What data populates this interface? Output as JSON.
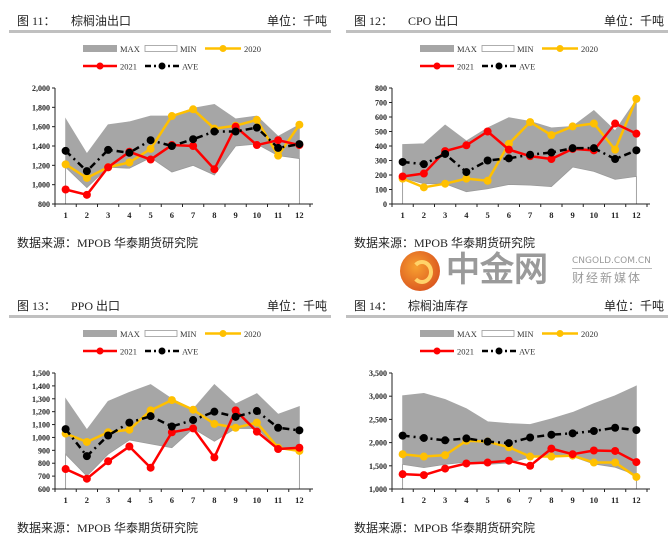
{
  "common": {
    "unit": "单位：千吨",
    "source": "数据来源：MPOB  华泰期货研究院",
    "legend": {
      "max": "MAX",
      "min": "MIN",
      "y2020": "2020",
      "y2021": "2021",
      "ave": "AVE"
    },
    "colors": {
      "band": "#a6a6a6",
      "min_edge": "#9a9a9a",
      "y2020": "#ffc000",
      "y2021": "#ff0000",
      "ave": "#000000"
    }
  },
  "watermark": {
    "cn": "中金网",
    "en": "CNGOLD.COM.CN",
    "sub": "财经新媒体"
  },
  "chart_data": [
    {
      "type": "line",
      "fig": "图 11：",
      "title": "棕榈油出口",
      "categories": [
        "1",
        "2",
        "3",
        "4",
        "5",
        "6",
        "7",
        "8",
        "9",
        "10",
        "11",
        "12"
      ],
      "ylim": [
        800,
        2000
      ],
      "yticks": [
        800,
        1000,
        1200,
        1400,
        1600,
        1800,
        2000
      ],
      "ytick_labels": [
        "800",
        "1,000",
        "1,200",
        "1,400",
        "1,600",
        "1,800",
        "2,000"
      ],
      "series": [
        {
          "name": "MAX",
          "values": [
            1680,
            1320,
            1620,
            1650,
            1710,
            1710,
            1790,
            1830,
            1680,
            1710,
            1500,
            1620
          ]
        },
        {
          "name": "MIN",
          "values": [
            1180,
            970,
            1180,
            1170,
            1280,
            1130,
            1200,
            1100,
            1400,
            1420,
            1300,
            1270
          ]
        },
        {
          "name": "2020",
          "values": [
            1210,
            1070,
            1180,
            1230,
            1370,
            1710,
            1780,
            1580,
            1610,
            1670,
            1300,
            1620
          ]
        },
        {
          "name": "2021",
          "values": [
            950,
            895,
            1180,
            1340,
            1260,
            1410,
            1400,
            1160,
            1600,
            1410,
            1460,
            1410
          ]
        },
        {
          "name": "AVE",
          "values": [
            1350,
            1140,
            1360,
            1330,
            1460,
            1400,
            1470,
            1550,
            1550,
            1590,
            1380,
            1420
          ]
        }
      ]
    },
    {
      "type": "line",
      "fig": "图 12：",
      "title": "CPO 出口",
      "categories": [
        "1",
        "2",
        "3",
        "4",
        "5",
        "6",
        "7",
        "8",
        "9",
        "10",
        "11",
        "12"
      ],
      "ylim": [
        0,
        800
      ],
      "yticks": [
        0,
        100,
        200,
        300,
        400,
        500,
        600,
        700,
        800
      ],
      "ytick_labels": [
        "0",
        "100",
        "200",
        "300",
        "400",
        "500",
        "600",
        "700",
        "800"
      ],
      "series": [
        {
          "name": "MAX",
          "values": [
            410,
            415,
            545,
            435,
            525,
            595,
            570,
            525,
            535,
            645,
            505,
            720
          ]
        },
        {
          "name": "MIN",
          "values": [
            180,
            140,
            140,
            85,
            105,
            135,
            130,
            120,
            255,
            225,
            170,
            190
          ]
        },
        {
          "name": "2020",
          "values": [
            175,
            115,
            140,
            175,
            160,
            415,
            565,
            475,
            535,
            555,
            375,
            725
          ]
        },
        {
          "name": "2021",
          "values": [
            190,
            210,
            365,
            405,
            500,
            375,
            330,
            310,
            380,
            370,
            555,
            485
          ]
        },
        {
          "name": "AVE",
          "values": [
            290,
            275,
            345,
            220,
            300,
            315,
            340,
            355,
            385,
            385,
            310,
            370
          ]
        }
      ]
    },
    {
      "type": "line",
      "fig": "图 13：",
      "title": "PPO 出口",
      "categories": [
        "1",
        "2",
        "3",
        "4",
        "5",
        "6",
        "7",
        "8",
        "9",
        "10",
        "11",
        "12"
      ],
      "ylim": [
        600,
        1500
      ],
      "yticks": [
        600,
        700,
        800,
        900,
        1000,
        1100,
        1200,
        1300,
        1400,
        1500
      ],
      "ytick_labels": [
        "600",
        "700",
        "800",
        "900",
        "1,000",
        "1,100",
        "1,200",
        "1,300",
        "1,400",
        "1,500"
      ],
      "series": [
        {
          "name": "MAX",
          "values": [
            1300,
            1060,
            1280,
            1350,
            1410,
            1300,
            1220,
            1410,
            1260,
            1340,
            1180,
            1240
          ]
        },
        {
          "name": "MIN",
          "values": [
            870,
            700,
            870,
            980,
            950,
            920,
            1070,
            970,
            1070,
            1070,
            920,
            920
          ]
        },
        {
          "name": "2020",
          "values": [
            1030,
            965,
            1040,
            1060,
            1210,
            1290,
            1215,
            1105,
            1075,
            1115,
            920,
            895
          ]
        },
        {
          "name": "2021",
          "values": [
            755,
            680,
            815,
            930,
            765,
            1040,
            1070,
            845,
            1210,
            1045,
            910,
            920
          ]
        },
        {
          "name": "AVE",
          "values": [
            1065,
            855,
            1015,
            1115,
            1165,
            1085,
            1135,
            1200,
            1160,
            1205,
            1075,
            1055
          ]
        }
      ]
    },
    {
      "type": "line",
      "fig": "图 14：",
      "title": "棕榈油库存",
      "categories": [
        "1",
        "2",
        "3",
        "4",
        "5",
        "6",
        "7",
        "8",
        "9",
        "10",
        "11",
        "12"
      ],
      "ylim": [
        1000,
        3500
      ],
      "yticks": [
        1000,
        1500,
        2000,
        2500,
        3000,
        3500
      ],
      "ytick_labels": [
        "1,000",
        "1,500",
        "2,000",
        "2,500",
        "3,000",
        "3,500"
      ],
      "series": [
        {
          "name": "MAX",
          "values": [
            3010,
            3060,
            2930,
            2730,
            2450,
            2410,
            2390,
            2510,
            2650,
            2840,
            3010,
            3220
          ]
        },
        {
          "name": "MIN",
          "values": [
            1530,
            1460,
            1530,
            1580,
            1530,
            1560,
            1690,
            1720,
            1700,
            1540,
            1470,
            1300
          ]
        },
        {
          "name": "2020",
          "values": [
            1750,
            1700,
            1730,
            2040,
            2020,
            1900,
            1700,
            1700,
            1720,
            1570,
            1570,
            1260
          ]
        },
        {
          "name": "2021",
          "values": [
            1320,
            1300,
            1440,
            1550,
            1570,
            1610,
            1500,
            1870,
            1750,
            1830,
            1820,
            1580
          ]
        },
        {
          "name": "AVE",
          "values": [
            2150,
            2100,
            2050,
            2090,
            2020,
            1990,
            2110,
            2170,
            2200,
            2250,
            2320,
            2270
          ]
        }
      ]
    }
  ]
}
